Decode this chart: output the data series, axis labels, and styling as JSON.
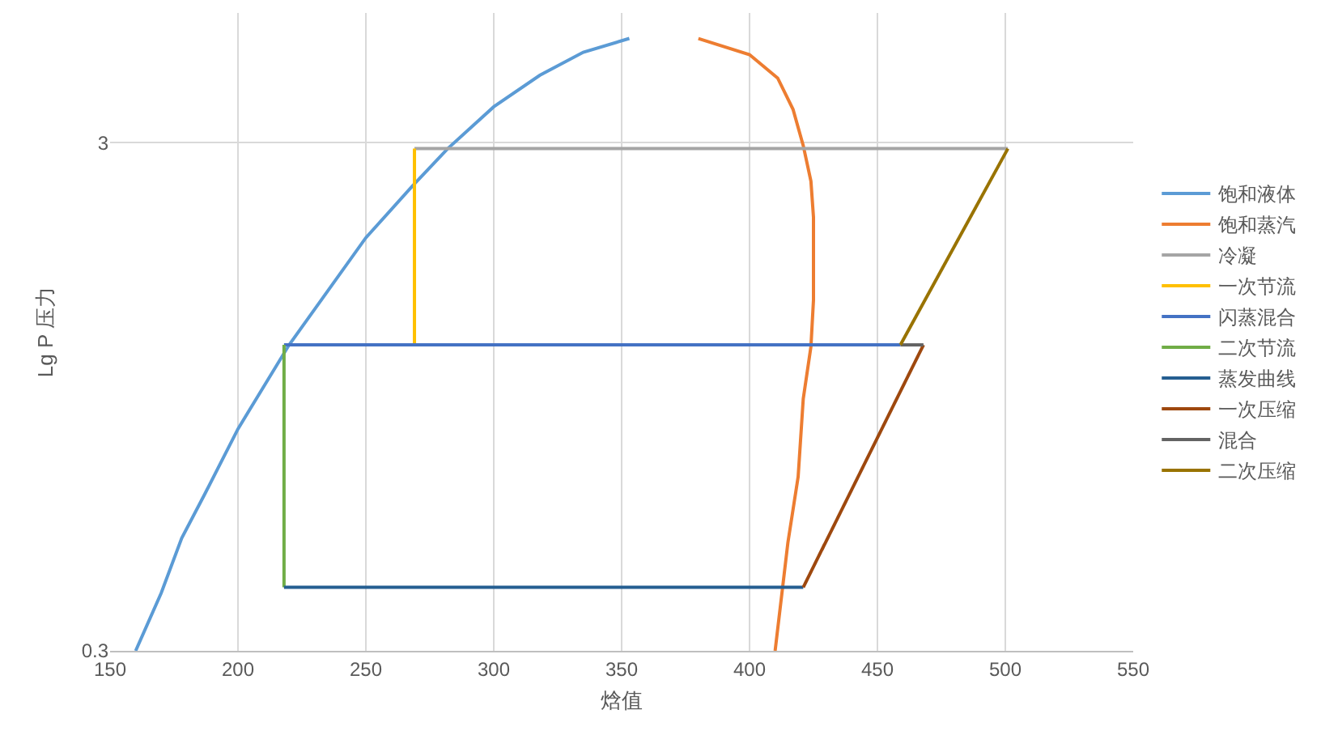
{
  "chart_data": {
    "type": "line",
    "xlabel": "焓值",
    "ylabel": "Lg P 压力",
    "xlim": [
      150,
      550
    ],
    "xticks": [
      150,
      200,
      250,
      300,
      350,
      400,
      450,
      500,
      550
    ],
    "ylim": [
      0.3,
      5.4
    ],
    "yticks": [
      0.3,
      3
    ],
    "log": true,
    "grid": true,
    "legend": "right",
    "marker": "none",
    "line_style": "solid",
    "series": [
      {
        "name": "饱和液体",
        "color": "#5b9bd5",
        "x": [
          160,
          170,
          178,
          187,
          200,
          220,
          250,
          269,
          282,
          300,
          318,
          335,
          353
        ],
        "values": [
          0.3,
          0.39,
          0.5,
          0.61,
          0.82,
          1.2,
          1.95,
          2.49,
          2.92,
          3.53,
          4.07,
          4.52,
          4.81
        ]
      },
      {
        "name": "饱和蒸汽",
        "color": "#ed7d31",
        "x": [
          380,
          400,
          411,
          417,
          421,
          424,
          425,
          425,
          425,
          424,
          421,
          419,
          415,
          410
        ],
        "values": [
          4.81,
          4.47,
          4.02,
          3.49,
          2.96,
          2.52,
          2.14,
          1.81,
          1.47,
          1.19,
          0.94,
          0.66,
          0.49,
          0.3
        ]
      },
      {
        "name": "冷凝",
        "color": "#a5a5a5",
        "x": [
          501,
          269
        ],
        "values": [
          2.92,
          2.92
        ]
      },
      {
        "name": "一次节流",
        "color": "#ffc000",
        "x": [
          269,
          269
        ],
        "values": [
          2.92,
          1.2
        ]
      },
      {
        "name": "闪蒸混合",
        "color": "#4472c4",
        "x": [
          459,
          218
        ],
        "values": [
          1.2,
          1.2
        ]
      },
      {
        "name": "二次节流",
        "color": "#70ad47",
        "x": [
          218,
          218
        ],
        "values": [
          1.2,
          0.4
        ]
      },
      {
        "name": "蒸发曲线",
        "color": "#255e91",
        "x": [
          218,
          421
        ],
        "values": [
          0.4,
          0.4
        ]
      },
      {
        "name": "一次压缩",
        "color": "#9e480e",
        "x": [
          421,
          468
        ],
        "values": [
          0.4,
          1.2
        ]
      },
      {
        "name": "混合",
        "color": "#636363",
        "x": [
          468,
          459
        ],
        "values": [
          1.2,
          1.2
        ]
      },
      {
        "name": "二次压缩",
        "color": "#997300",
        "x": [
          459,
          501
        ],
        "values": [
          1.2,
          2.92
        ]
      }
    ]
  }
}
